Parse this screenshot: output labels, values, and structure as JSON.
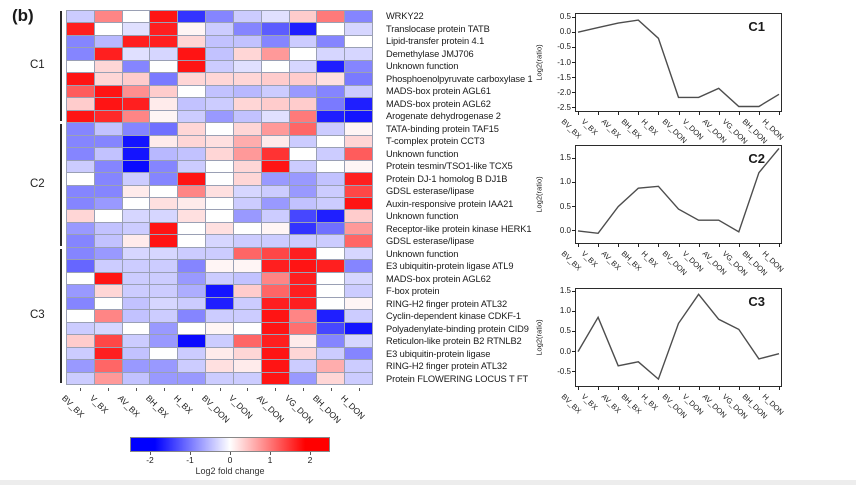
{
  "figure_label": "(b)",
  "colorbar": {
    "label": "Log2 fold change",
    "ticks": [
      -2,
      -1,
      0,
      1,
      2
    ],
    "min": -2.5,
    "max": 2.5
  },
  "chart_data": [
    {
      "type": "heatmap",
      "title": "Heatmap of log2 fold change for cluster genes",
      "columns": [
        "BV_BX",
        "V_BX",
        "AV_BX",
        "BH_BX",
        "H_BX",
        "BV_DON",
        "V_DON",
        "AV_DON",
        "VG_DON",
        "BH_DON",
        "H_DON"
      ],
      "row_labels": [
        "WRKY22",
        "Translocase protein TATB",
        "Lipid-transfer protein 4.1",
        "Demethylase JMJ706",
        "Unknown function",
        "Phosphoenolpyruvate carboxylase 1",
        "MADS-box protein AGL61",
        "MADS-box protein AGL62",
        "Arogenate dehydrogenase 2",
        "TATA-binding protein TAF15",
        "T-complex protein CCT3",
        "Unknown function",
        "Protein tesmin/TSO1-like TCX5",
        "Protein DJ-1 homolog B DJ1B",
        "GDSL esterase/lipase",
        "Auxin-responsive protein IAA21",
        "Unknown function",
        "Receptor-like protein kinase HERK1",
        "GDSL esterase/lipase",
        "Unknown function",
        "E3 ubiquitin-protein ligase ATL9",
        "MADS-box protein AGL62",
        "F-box protein",
        "RING-H2 finger protein ATL32",
        "Cyclin-dependent kinase CDKF-1",
        "Polyadenylate-binding protein CID9",
        "Reticulon-like protein B2 RTNLB2",
        "E3 ubiquitin-protein ligase",
        "RING-H2 finger protein ATL32",
        "Protein FLOWERING LOCUS T FT"
      ],
      "clusters": [
        {
          "label": "C1",
          "row_start": 0,
          "row_end": 8
        },
        {
          "label": "C2",
          "row_start": 9,
          "row_end": 18
        },
        {
          "label": "C3",
          "row_start": 19,
          "row_end": 29
        }
      ],
      "vmin": -2.5,
      "vmax": 2.5,
      "color_negative": "#0000ff",
      "color_mid": "#ffffff",
      "color_positive": "#ff0000",
      "legend_label": "Log2 fold change",
      "values": [
        [
          -0.5,
          1.2,
          0.0,
          2.3,
          -2.0,
          -1.2,
          -0.5,
          -0.3,
          0.5,
          1.3,
          -1.2
        ],
        [
          2.2,
          0.0,
          -0.3,
          2.2,
          0.1,
          -0.5,
          -1.2,
          -1.6,
          -2.2,
          0.0,
          -0.4
        ],
        [
          -1.2,
          -0.7,
          2.2,
          2.2,
          0.4,
          -0.6,
          -0.6,
          -1.2,
          -0.5,
          -1.2,
          0.0
        ],
        [
          -1.2,
          2.2,
          -0.3,
          -0.4,
          2.3,
          -0.6,
          0.4,
          1.0,
          0.0,
          -0.4,
          -0.4
        ],
        [
          0.0,
          0.4,
          -1.2,
          0.0,
          2.3,
          -0.5,
          -0.3,
          0.0,
          -0.4,
          -2.2,
          -1.2
        ],
        [
          2.3,
          0.4,
          0.5,
          -1.3,
          0.4,
          0.4,
          0.4,
          0.5,
          0.5,
          0.3,
          -1.3
        ],
        [
          1.6,
          2.3,
          1.1,
          0.5,
          0.0,
          -0.6,
          -0.7,
          -0.5,
          -1.0,
          -1.2,
          -0.5
        ],
        [
          0.5,
          2.3,
          2.2,
          0.2,
          -0.6,
          -0.5,
          0.4,
          0.5,
          0.5,
          -1.3,
          -2.2
        ],
        [
          2.3,
          2.1,
          1.2,
          0.1,
          -0.5,
          -1.0,
          -0.6,
          -0.3,
          1.3,
          -2.2,
          -2.3
        ],
        [
          -1.2,
          -0.6,
          -1.2,
          -1.4,
          0.4,
          0.0,
          0.4,
          1.0,
          1.5,
          -0.5,
          0.1
        ],
        [
          -1.2,
          -1.2,
          -2.3,
          0.2,
          0.4,
          0.3,
          0.8,
          0.2,
          -0.5,
          0.0,
          0.4
        ],
        [
          -1.2,
          -0.6,
          -2.3,
          -0.7,
          -0.6,
          0.4,
          1.0,
          2.0,
          0.0,
          -0.5,
          1.6
        ],
        [
          -0.5,
          -1.2,
          -2.4,
          -1.2,
          -0.5,
          0.0,
          0.4,
          2.3,
          -0.5,
          0.0,
          0.1
        ],
        [
          0.0,
          -1.2,
          -0.5,
          -1.2,
          2.3,
          0.0,
          0.4,
          -1.0,
          -1.0,
          -0.6,
          2.2
        ],
        [
          -1.2,
          -1.2,
          0.2,
          0.0,
          1.2,
          0.3,
          -0.4,
          -0.5,
          -1.0,
          -0.5,
          1.8
        ],
        [
          -1.2,
          -1.0,
          0.0,
          0.3,
          0.2,
          0.0,
          -0.5,
          -1.0,
          -0.6,
          -0.5,
          2.3
        ],
        [
          0.4,
          0.0,
          -0.4,
          -0.4,
          0.3,
          0.0,
          -1.0,
          -0.5,
          -1.8,
          -2.2,
          0.5
        ],
        [
          -1.0,
          -0.6,
          -0.5,
          2.3,
          0.0,
          0.3,
          0.0,
          0.1,
          -2.0,
          -1.4,
          1.0
        ],
        [
          -1.2,
          -0.6,
          0.2,
          2.3,
          0.0,
          -0.4,
          -0.5,
          -0.5,
          -0.5,
          -0.5,
          1.5
        ],
        [
          -1.2,
          -1.0,
          -0.4,
          -0.4,
          -0.5,
          -0.5,
          1.5,
          1.8,
          2.2,
          0.0,
          -0.4
        ],
        [
          -1.5,
          -0.5,
          -0.5,
          -0.5,
          -1.2,
          0.1,
          0.1,
          2.2,
          2.3,
          2.2,
          -1.2
        ],
        [
          0.0,
          2.3,
          -0.5,
          -0.5,
          -1.0,
          -0.5,
          -0.6,
          1.2,
          2.2,
          0.0,
          -0.4
        ],
        [
          -1.0,
          0.4,
          -0.5,
          -0.5,
          -0.8,
          -2.3,
          0.5,
          1.5,
          2.2,
          0.0,
          -0.5
        ],
        [
          -1.2,
          0.0,
          -0.6,
          -0.4,
          -0.5,
          -2.2,
          -0.5,
          2.2,
          2.2,
          0.0,
          0.1
        ],
        [
          0.0,
          1.2,
          -0.6,
          -0.5,
          -1.2,
          -0.5,
          -0.5,
          2.3,
          1.2,
          -2.2,
          -0.5
        ],
        [
          -0.5,
          -0.4,
          0.0,
          -1.0,
          0.0,
          0.1,
          0.0,
          2.3,
          1.4,
          -1.8,
          -2.3
        ],
        [
          0.5,
          1.8,
          -0.5,
          -1.0,
          -2.4,
          -0.5,
          1.5,
          2.2,
          0.2,
          -1.2,
          -0.4
        ],
        [
          -0.5,
          2.2,
          -0.6,
          0.0,
          -0.5,
          0.2,
          0.4,
          2.3,
          0.4,
          -0.5,
          -1.2
        ],
        [
          -1.0,
          1.5,
          -1.0,
          -1.0,
          -0.5,
          0.3,
          0.2,
          2.3,
          -0.5,
          0.8,
          -0.5
        ],
        [
          -0.5,
          1.0,
          -0.6,
          -1.0,
          -1.0,
          -0.5,
          -0.5,
          2.3,
          -1.0,
          0.4,
          -0.5
        ]
      ]
    },
    {
      "type": "line",
      "title": "C1",
      "ylabel": "Log2(ratio)",
      "categories": [
        "BV_BX",
        "V_BX",
        "AV_BX",
        "BH_BX",
        "H_BX",
        "BV_DON",
        "V_DON",
        "AV_DON",
        "VG_DON",
        "BH_DON",
        "H_DON"
      ],
      "values": [
        0.0,
        0.15,
        0.3,
        0.4,
        -0.2,
        -2.15,
        -2.15,
        -1.85,
        -2.45,
        -2.45,
        -2.05
      ],
      "yticks": [
        0.5,
        0.0,
        -0.5,
        -1.0,
        -1.5,
        -2.0,
        -2.5
      ],
      "ylim": [
        -2.6,
        0.6
      ]
    },
    {
      "type": "line",
      "title": "C2",
      "ylabel": "Log2(ratio)",
      "categories": [
        "BV_BX",
        "V_BX",
        "AV_BX",
        "BH_BX",
        "H_BX",
        "BV_DON",
        "V_DON",
        "AV_DON",
        "VG_DON",
        "BH_DON",
        "H_DON"
      ],
      "values": [
        0.0,
        -0.05,
        0.5,
        0.88,
        0.92,
        0.45,
        0.22,
        0.22,
        -0.02,
        1.2,
        1.7
      ],
      "yticks": [
        1.5,
        1.0,
        0.5,
        0.0
      ],
      "ylim": [
        -0.25,
        1.75
      ]
    },
    {
      "type": "line",
      "title": "C3",
      "ylabel": "Log2(ratio)",
      "categories": [
        "BV_BX",
        "V_BX",
        "AV_BX",
        "BH_BX",
        "H_BX",
        "BV_DON",
        "V_DON",
        "AV_DON",
        "VG_DON",
        "BH_DON",
        "H_DON"
      ],
      "values": [
        0.0,
        0.85,
        -0.35,
        -0.25,
        -0.68,
        0.7,
        1.42,
        0.8,
        0.55,
        -0.18,
        -0.05
      ],
      "yticks": [
        1.5,
        1.0,
        0.5,
        0.0,
        -0.5
      ],
      "ylim": [
        -0.85,
        1.55
      ]
    }
  ]
}
